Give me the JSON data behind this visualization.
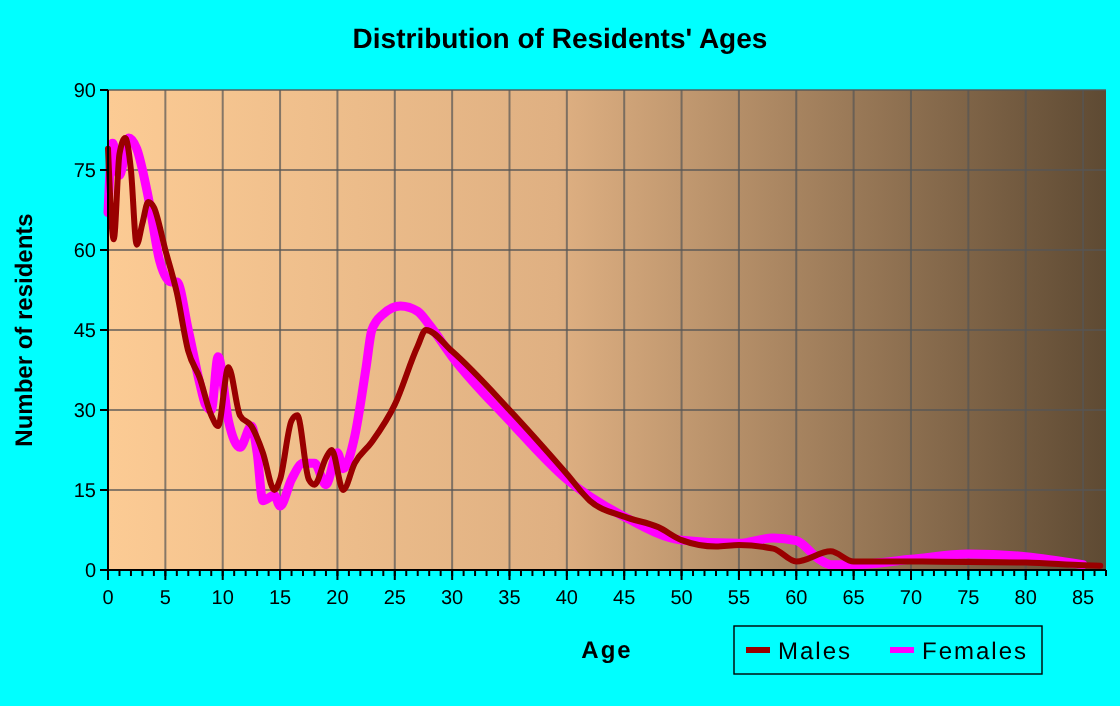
{
  "chart_data": {
    "type": "line",
    "title": "Distribution of Residents' Ages",
    "xlabel": "Age",
    "ylabel": "Number of residents",
    "xlim": [
      0,
      87
    ],
    "xticks": [
      0,
      5,
      10,
      15,
      20,
      25,
      30,
      35,
      40,
      45,
      50,
      55,
      60,
      65,
      70,
      75,
      80,
      85
    ],
    "ylim": [
      0,
      90
    ],
    "yticks": [
      0,
      15,
      30,
      45,
      60,
      75,
      90
    ],
    "grid": true,
    "legend": "bottom right",
    "series": [
      {
        "name": "Males",
        "color": "#990000",
        "x": [
          0,
          0.5,
          1,
          1.5,
          2,
          2.5,
          3,
          3.5,
          4,
          5,
          6,
          7,
          8,
          9,
          9.6,
          10.5,
          11.5,
          12.5,
          13.5,
          14.5,
          15,
          16,
          16.5,
          17.5,
          18,
          19,
          19.5,
          20.5,
          21.5,
          23,
          25,
          27,
          27.7,
          30,
          35,
          40,
          42,
          45,
          48,
          50,
          53,
          55,
          58,
          60,
          63,
          65,
          70,
          75,
          80,
          85,
          86.5
        ],
        "values": [
          79,
          62,
          78,
          81,
          75,
          61,
          65,
          69,
          68,
          60,
          52,
          41,
          36,
          29,
          27,
          38,
          29,
          27,
          22,
          15,
          17,
          28,
          29,
          17,
          16,
          21,
          22.5,
          15,
          20,
          24,
          31,
          42,
          45,
          41,
          30,
          18,
          13,
          10,
          8,
          5.6,
          4.4,
          4.7,
          4,
          1.6,
          3.5,
          1.6,
          1.6,
          1.5,
          1.4,
          0.9,
          0.8
        ]
      },
      {
        "name": "Females",
        "color": "#ff00ff",
        "x": [
          0,
          0.4,
          1,
          1.8,
          2.5,
          3.5,
          4.5,
          5.5,
          6,
          7,
          8,
          8.5,
          9,
          9.6,
          10.5,
          11.5,
          12.5,
          13,
          13.5,
          14.5,
          15,
          16,
          17,
          18,
          19,
          20,
          20.5,
          21.5,
          22.5,
          23,
          24,
          25.5,
          27,
          28,
          30,
          35,
          40,
          45,
          50,
          55,
          58,
          60,
          62,
          63,
          65,
          70,
          75,
          80,
          85
        ],
        "values": [
          67,
          80,
          74,
          81,
          79,
          70,
          58,
          54,
          54,
          45,
          35,
          31,
          30,
          40,
          28,
          23,
          27,
          22,
          13,
          14,
          12,
          17,
          20,
          20,
          16,
          22,
          19,
          25,
          38,
          45,
          48,
          49.5,
          48.5,
          46,
          40,
          28,
          17,
          10,
          5.6,
          5,
          6,
          5.5,
          2,
          1,
          1,
          2,
          3,
          2.5,
          1
        ]
      }
    ]
  }
}
